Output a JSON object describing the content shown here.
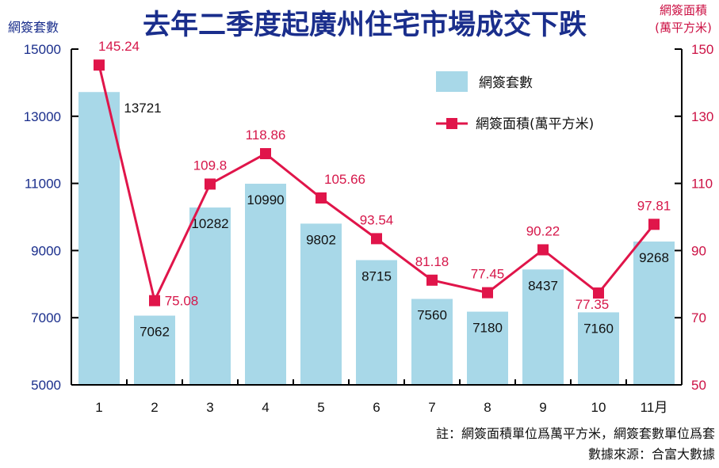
{
  "chart_data": {
    "type": "bar+line",
    "title": "去年二季度起廣州住宅市場成交下跌",
    "y_left_label": "網簽套數",
    "y_right_label_line1": "網簽面積",
    "y_right_label_line2": "(萬平方米)",
    "categories": [
      "1",
      "2",
      "3",
      "4",
      "5",
      "6",
      "7",
      "8",
      "9",
      "10",
      "11月"
    ],
    "series": [
      {
        "name": "網簽套數",
        "type": "bar",
        "axis": "left",
        "color": "#a8d8e8",
        "values": [
          13721,
          7062,
          10282,
          10990,
          9802,
          8715,
          7560,
          7180,
          8437,
          7160,
          9268
        ],
        "labels": [
          "13721",
          "7062",
          "10282",
          "10990",
          "9802",
          "8715",
          "7560",
          "7180",
          "8437",
          "7160",
          "9268"
        ]
      },
      {
        "name": "網簽面積(萬平方米)",
        "type": "line",
        "axis": "right",
        "color": "#e0154a",
        "values": [
          145.24,
          75.08,
          109.8,
          118.86,
          105.66,
          93.54,
          81.18,
          77.45,
          90.22,
          77.35,
          97.81
        ],
        "labels": [
          "145.24",
          "75.08",
          "109.8",
          "118.86",
          "105.66",
          "93.54",
          "81.18",
          "77.45",
          "90.22",
          "77.35",
          "97.81"
        ]
      }
    ],
    "y_left": {
      "min": 5000,
      "max": 15000,
      "ticks": [
        "5000",
        "7000",
        "9000",
        "11000",
        "13000",
        "15000"
      ]
    },
    "y_right": {
      "min": 50,
      "max": 150,
      "ticks": [
        "50",
        "70",
        "90",
        "110",
        "130",
        "150"
      ]
    },
    "legend_position": "top-right",
    "footnote_line1": "註：網簽面積單位爲萬平方米，網簽套數單位爲套",
    "footnote_line2": "數據來源：合富大數據"
  }
}
